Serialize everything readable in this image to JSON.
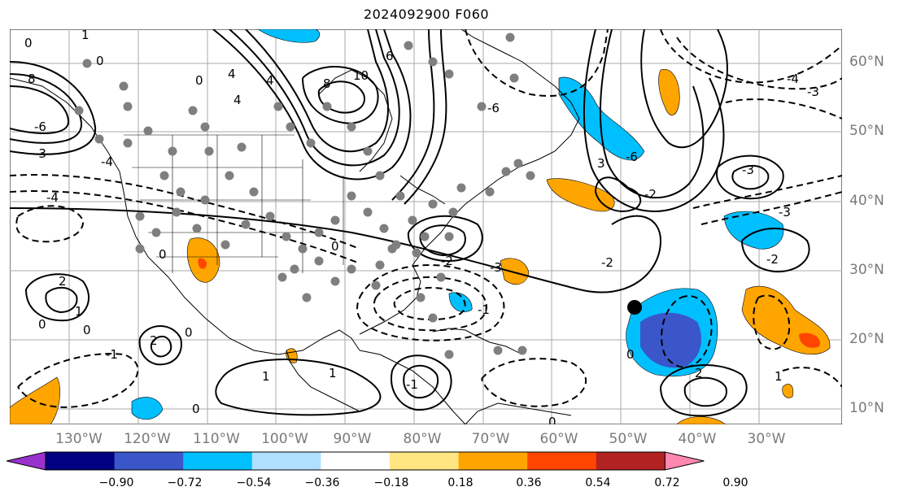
{
  "title": "2024092900 F060",
  "lon_labels": [
    "130°W",
    "120°W",
    "110°W",
    "100°W",
    "90°W",
    "80°W",
    "70°W",
    "60°W",
    "50°W",
    "40°W",
    "30°W"
  ],
  "lat_labels": [
    "60°N",
    "50°N",
    "40°N",
    "30°N",
    "20°N",
    "10°N"
  ],
  "colorbar": {
    "labels": [
      "−0.90",
      "−0.72",
      "−0.54",
      "−0.36",
      "−0.18",
      "0.18",
      "0.36",
      "0.54",
      "0.72",
      "0.90"
    ],
    "colors": [
      "#9932cc",
      "#000080",
      "#3a56c8",
      "#00bfff",
      "#b0e0ff",
      "#ffffff",
      "#ffe680",
      "#ffa500",
      "#ff4500",
      "#b22222",
      "#ff88b0"
    ]
  },
  "contour_labels": [
    "0",
    "1",
    "2",
    "3",
    "4",
    "6",
    "8",
    "10",
    "-1",
    "-2",
    "-3",
    "-4",
    "-6"
  ],
  "map_colors": {
    "ocean": "#ffffff",
    "land_outline": "#000000",
    "grid": "#aaaaaa",
    "dots": "#7f7f7f",
    "marker": "#000000"
  }
}
